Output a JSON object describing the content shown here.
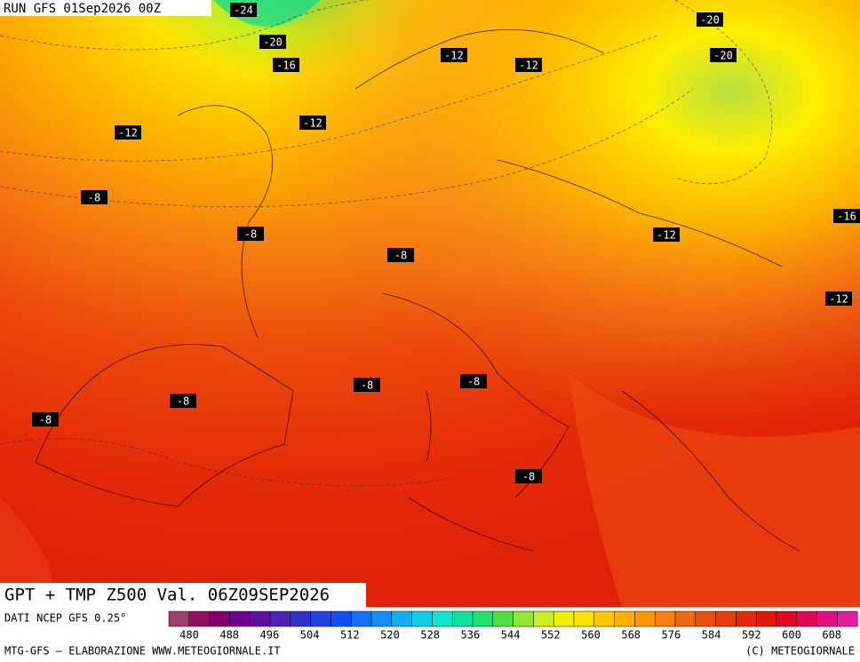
{
  "header": {
    "run": "RUN GFS 01Sep2026 00Z"
  },
  "map": {
    "temperature_labels": [
      "-24",
      "-20",
      "-16",
      "-12",
      "-12",
      "-20",
      "-20",
      "-12",
      "-12",
      "-8",
      "-8",
      "-8",
      "-12",
      "-16",
      "-12",
      "-8",
      "-8",
      "-8",
      "-8",
      "-8"
    ]
  },
  "footer": {
    "title": "GPT + TMP Z500 Val. 06Z09SEP2026",
    "source": "DATI NCEP GFS 0.25°",
    "scale_ticks": [
      480,
      488,
      496,
      504,
      512,
      520,
      528,
      536,
      544,
      552,
      560,
      568,
      576,
      584,
      592,
      600,
      608
    ],
    "credit_left": "MTG-GFS — ELABORAZIONE WWW.METEOGIORNALE.IT",
    "credit_right": "(C) METEOGIORNALE"
  }
}
